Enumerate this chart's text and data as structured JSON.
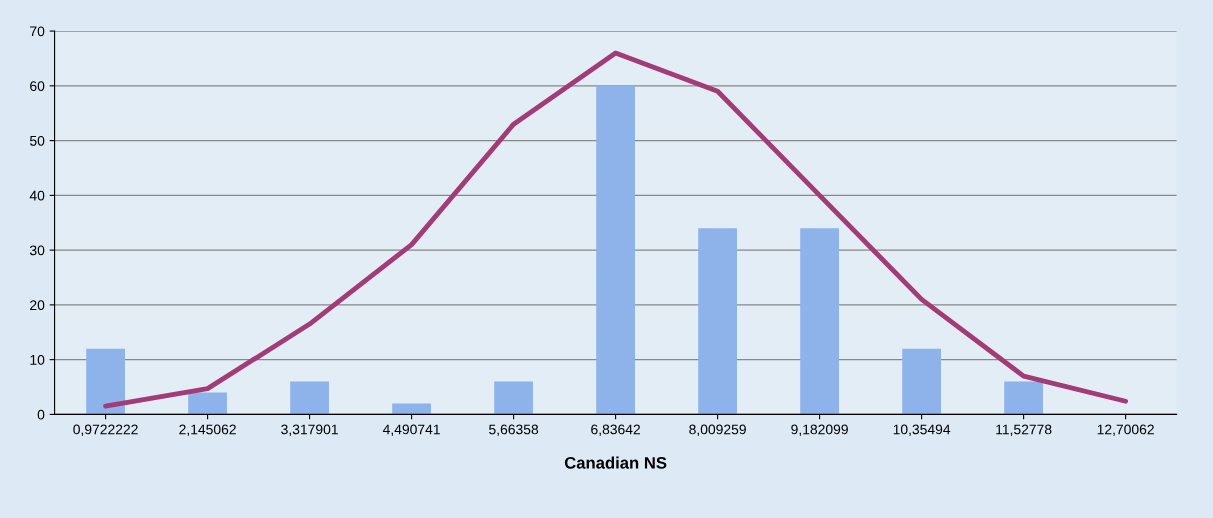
{
  "chart_data": {
    "type": "bar",
    "xlabel": "Canadian NS",
    "categories": [
      "0,9722222",
      "2,145062",
      "3,317901",
      "4,490741",
      "5,66358",
      "6,83642",
      "8,009259",
      "9,182099",
      "10,35494",
      "11,52778",
      "12,70062"
    ],
    "series": [
      {
        "color": "#8db3ea",
        "values": [
          12,
          4,
          6,
          2,
          6,
          60,
          34,
          34,
          12,
          6,
          0
        ]
      },
      {
        "type": "line",
        "color": "#a23b78",
        "values": [
          1.5,
          4.7,
          16.5,
          31,
          53,
          66,
          59,
          40,
          21,
          7,
          2.4
        ]
      }
    ],
    "ylim": [
      0,
      70
    ],
    "yticks": [
      0,
      10,
      20,
      30,
      40,
      50,
      60,
      70
    ],
    "grid": "y",
    "legend": false
  }
}
